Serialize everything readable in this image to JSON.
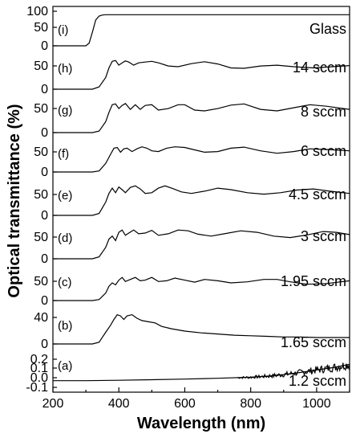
{
  "chart_data": {
    "type": "line",
    "xlabel": "Wavelength (nm)",
    "ylabel": "Optical transmittance (%)",
    "xlim": [
      200,
      1100
    ],
    "x_ticks": [
      "200",
      "400",
      "600",
      "800",
      "1000"
    ],
    "panels": [
      {
        "tag": "(i)",
        "label": "Glass",
        "ylim": [
          0,
          100
        ],
        "y_ticks": [
          "100",
          "50",
          "0"
        ],
        "x": [
          300,
          310,
          320,
          330,
          340,
          350,
          360,
          1100
        ],
        "y": [
          0,
          8,
          40,
          75,
          86,
          89,
          90,
          90
        ]
      },
      {
        "tag": "(h)",
        "label": "14 sccm",
        "ylim": [
          0,
          85
        ],
        "y_ticks": [
          "50",
          "0"
        ],
        "x": [
          320,
          340,
          360,
          370,
          380,
          390,
          400,
          410,
          420,
          430,
          445,
          460,
          480,
          500,
          520,
          550,
          580,
          620,
          660,
          700,
          740,
          780,
          830,
          880,
          930,
          990,
          1050,
          1100
        ],
        "y": [
          0,
          6,
          30,
          55,
          72,
          74,
          62,
          68,
          73,
          70,
          62,
          68,
          70,
          72,
          68,
          60,
          58,
          66,
          71,
          65,
          55,
          54,
          60,
          62,
          58,
          55,
          58,
          61
        ]
      },
      {
        "tag": "(g)",
        "label": "8 sccm",
        "ylim": [
          0,
          85
        ],
        "y_ticks": [
          "50",
          "0"
        ],
        "x": [
          320,
          340,
          360,
          370,
          380,
          390,
          400,
          410,
          420,
          435,
          450,
          465,
          480,
          500,
          520,
          550,
          580,
          600,
          630,
          660,
          700,
          740,
          780,
          830,
          880,
          930,
          980,
          1030,
          1100
        ],
        "y": [
          0,
          4,
          28,
          52,
          72,
          74,
          62,
          70,
          75,
          60,
          72,
          60,
          70,
          72,
          58,
          62,
          72,
          72,
          58,
          56,
          62,
          71,
          74,
          60,
          56,
          64,
          72,
          68,
          60
        ]
      },
      {
        "tag": "(f)",
        "label": "6 sccm",
        "ylim": [
          0,
          85
        ],
        "y_ticks": [
          "50",
          "0"
        ],
        "x": [
          320,
          340,
          360,
          375,
          385,
          395,
          405,
          415,
          425,
          440,
          455,
          470,
          485,
          500,
          520,
          545,
          570,
          600,
          630,
          660,
          700,
          740,
          780,
          830,
          880,
          930,
          980,
          1030,
          1100
        ],
        "y": [
          0,
          3,
          25,
          52,
          70,
          72,
          58,
          68,
          70,
          60,
          68,
          74,
          70,
          62,
          60,
          70,
          74,
          72,
          65,
          58,
          60,
          70,
          73,
          62,
          55,
          60,
          68,
          66,
          62
        ]
      },
      {
        "tag": "(e)",
        "label": "4.5 sccm",
        "ylim": [
          0,
          85
        ],
        "y_ticks": [
          "50",
          "0"
        ],
        "x": [
          320,
          340,
          360,
          370,
          380,
          390,
          400,
          410,
          420,
          435,
          450,
          465,
          480,
          500,
          520,
          540,
          560,
          590,
          620,
          660,
          700,
          740,
          790,
          840,
          890,
          940,
          990,
          1040,
          1100
        ],
        "y": [
          0,
          5,
          35,
          58,
          72,
          60,
          75,
          68,
          60,
          74,
          78,
          70,
          58,
          60,
          72,
          78,
          72,
          62,
          58,
          64,
          72,
          68,
          60,
          56,
          60,
          67,
          70,
          64,
          58
        ]
      },
      {
        "tag": "(d)",
        "label": "3 sccm",
        "ylim": [
          0,
          85
        ],
        "y_ticks": [
          "50",
          "0"
        ],
        "x": [
          320,
          340,
          360,
          370,
          380,
          390,
          400,
          410,
          420,
          430,
          445,
          460,
          480,
          500,
          520,
          550,
          580,
          610,
          640,
          680,
          720,
          770,
          820,
          870,
          920,
          970,
          1020,
          1060,
          1100
        ],
        "y": [
          0,
          5,
          30,
          52,
          60,
          48,
          70,
          76,
          62,
          68,
          76,
          66,
          68,
          75,
          62,
          66,
          76,
          74,
          65,
          60,
          66,
          74,
          70,
          60,
          56,
          63,
          72,
          70,
          64
        ]
      },
      {
        "tag": "(c)",
        "label": "1.95 sccm",
        "ylim": [
          0,
          85
        ],
        "y_ticks": [
          "50",
          "0"
        ],
        "x": [
          320,
          340,
          360,
          370,
          380,
          390,
          400,
          410,
          420,
          435,
          450,
          465,
          480,
          500,
          520,
          545,
          570,
          600,
          630,
          660,
          700,
          740,
          790,
          840,
          880,
          920,
          970,
          1030,
          1100
        ],
        "y": [
          0,
          3,
          22,
          42,
          52,
          46,
          60,
          68,
          56,
          62,
          68,
          58,
          60,
          68,
          56,
          58,
          66,
          60,
          54,
          62,
          58,
          52,
          55,
          62,
          62,
          55,
          48,
          50,
          58
        ]
      },
      {
        "tag": "(b)",
        "label": "1.65 sccm",
        "ylim": [
          0,
          55
        ],
        "y_ticks": [
          "40",
          "0"
        ],
        "x": [
          320,
          340,
          360,
          375,
          385,
          395,
          405,
          415,
          425,
          440,
          455,
          470,
          490,
          510,
          530,
          560,
          600,
          650,
          700,
          750,
          800,
          850,
          900,
          950,
          1000,
          1050,
          1100
        ],
        "y": [
          0,
          3,
          20,
          32,
          42,
          50,
          48,
          42,
          48,
          50,
          44,
          40,
          38,
          36,
          30,
          26,
          22,
          19,
          17,
          15,
          14,
          13,
          12,
          12,
          11,
          11,
          11
        ]
      },
      {
        "tag": "(a)",
        "label": "1.2 sccm",
        "ylim": [
          -0.12,
          0.33
        ],
        "y_ticks": [
          "0.2",
          "0.1",
          "0.0",
          "-0.1"
        ],
        "x": [
          200,
          300,
          400,
          500,
          600,
          700,
          800,
          850,
          900,
          950,
          1000,
          1050,
          1100
        ],
        "y": [
          0,
          0,
          0.005,
          0.012,
          0.02,
          0.03,
          0.042,
          0.055,
          0.075,
          0.1,
          0.13,
          0.16,
          0.2
        ]
      }
    ]
  }
}
